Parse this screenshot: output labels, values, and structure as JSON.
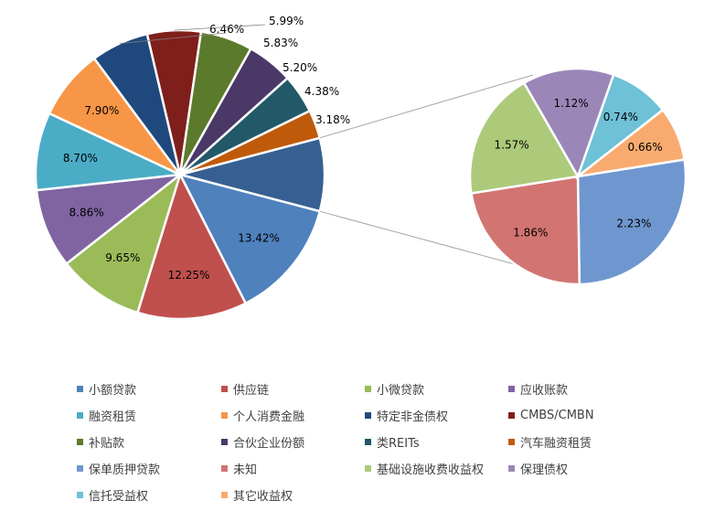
{
  "chart_data": {
    "type": "pie",
    "title": "",
    "main_pie": {
      "slices": [
        {
          "category": "小额贷款",
          "value": 13.42,
          "label": "13.42%",
          "color": "#4f81bd"
        },
        {
          "category": "供应链",
          "value": 12.25,
          "label": "12.25%",
          "color": "#c0504d"
        },
        {
          "category": "小微贷款",
          "value": 9.65,
          "label": "9.65%",
          "color": "#9bbb59"
        },
        {
          "category": "应收账款",
          "value": 8.86,
          "label": "8.86%",
          "color": "#8064a2"
        },
        {
          "category": "融资租赁",
          "value": 8.7,
          "label": "8.70%",
          "color": "#4bacc6"
        },
        {
          "category": "个人消费金融",
          "value": 7.9,
          "label": "7.90%",
          "color": "#f79646"
        },
        {
          "category": "特定非金债权",
          "value": 6.46,
          "label": "6.46%",
          "color": "#1f497d"
        },
        {
          "category": "CMBS/CMBN",
          "value": 5.99,
          "label": "5.99%",
          "color": "#7f1f1c"
        },
        {
          "category": "补贴款",
          "value": 5.83,
          "label": "5.83%",
          "color": "#5c7a2c"
        },
        {
          "category": "合伙企业份额",
          "value": 5.2,
          "label": "5.20%",
          "color": "#4a3867"
        },
        {
          "category": "类REITs",
          "value": 4.38,
          "label": "4.38%",
          "color": "#215968"
        },
        {
          "category": "汽车融资租赁",
          "value": 3.18,
          "label": "3.18%",
          "color": "#c05a0b"
        }
      ],
      "other_group": {
        "value": 8.18,
        "color": "#376092"
      }
    },
    "secondary_pie": {
      "slices": [
        {
          "category": "保单质押贷款",
          "value": 2.23,
          "label": "2.23%",
          "color": "#6f97cf"
        },
        {
          "category": "未知",
          "value": 1.86,
          "label": "1.86%",
          "color": "#d27472"
        },
        {
          "category": "基础设施收费收益权",
          "value": 1.57,
          "label": "1.57%",
          "color": "#adc97a"
        },
        {
          "category": "保理债权",
          "value": 1.12,
          "label": "1.12%",
          "color": "#9a87b8"
        },
        {
          "category": "信托受益权",
          "value": 0.74,
          "label": "0.74%",
          "color": "#6ec1d7"
        },
        {
          "category": "其它收益权",
          "value": 0.66,
          "label": "0.66%",
          "color": "#f9ab6f"
        }
      ]
    },
    "legend": {
      "placement": "bottom",
      "items": [
        {
          "label": "小额贷款",
          "color": "#4f81bd"
        },
        {
          "label": "供应链",
          "color": "#c0504d"
        },
        {
          "label": "小微贷款",
          "color": "#9bbb59"
        },
        {
          "label": "应收账款",
          "color": "#8064a2"
        },
        {
          "label": "融资租赁",
          "color": "#4bacc6"
        },
        {
          "label": "个人消费金融",
          "color": "#f79646"
        },
        {
          "label": "特定非金债权",
          "color": "#1f497d"
        },
        {
          "label": "CMBS/CMBN",
          "color": "#7f1f1c"
        },
        {
          "label": "补贴款",
          "color": "#5c7a2c"
        },
        {
          "label": "合伙企业份额",
          "color": "#4a3867"
        },
        {
          "label": "类REITs",
          "color": "#215968"
        },
        {
          "label": "汽车融资租赁",
          "color": "#c05a0b"
        },
        {
          "label": "保单质押贷款",
          "color": "#6f97cf"
        },
        {
          "label": "未知",
          "color": "#d27472"
        },
        {
          "label": "基础设施收费收益权",
          "color": "#adc97a"
        },
        {
          "label": "保理债权",
          "color": "#9a87b8"
        },
        {
          "label": "信托受益权",
          "color": "#6ec1d7"
        },
        {
          "label": "其它收益权",
          "color": "#f9ab6f"
        }
      ]
    }
  }
}
